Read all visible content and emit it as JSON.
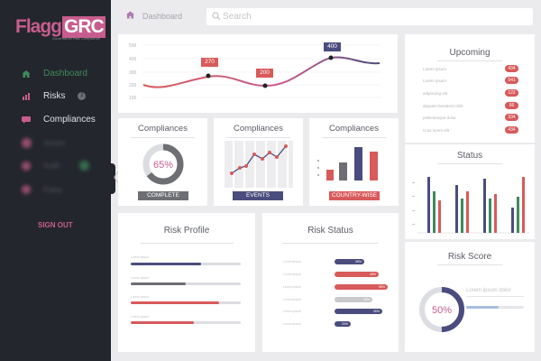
{
  "sidebar": {
    "logo_main": "Flagg",
    "logo_accent": "GRC",
    "logo_sub": "Governance Risk Compliance",
    "items": [
      {
        "label": "Dashboard",
        "icon": "home-icon"
      },
      {
        "label": "Risks",
        "icon": "bar-chart-icon",
        "badge": "2"
      },
      {
        "label": "Compliances",
        "icon": "chat-icon"
      },
      {
        "label": "Issues",
        "icon": "bug-icon"
      },
      {
        "label": "Audit",
        "icon": "audit-icon"
      },
      {
        "label": "Policy",
        "icon": "policy-icon"
      }
    ],
    "sign_out": "SIGN OUT",
    "collapse_glyph": "〈"
  },
  "topbar": {
    "breadcrumb": "Dashboard",
    "search_placeholder": "Search"
  },
  "colors": {
    "accent": "#c75d8e",
    "navy": "#4b4c7e",
    "red": "#d85a5a",
    "gray": "#6e6f74",
    "green": "#3e8a5a",
    "sidebar_bg": "#23262d"
  },
  "line_chart": {
    "y_ticks": [
      "500",
      "400",
      "300",
      "200",
      "100"
    ],
    "labels": [
      "270",
      "200",
      "400"
    ]
  },
  "compliances": [
    {
      "title": "Compliances",
      "center": "65%",
      "tag": "COMPLETE"
    },
    {
      "title": "Compliances",
      "tag": "EVENTS"
    },
    {
      "title": "Compliances",
      "tag": "COUNTRY-WISE"
    }
  ],
  "upcoming": {
    "title": "Upcoming",
    "rows": [
      {
        "text": "Lorem ipsum",
        "value": "434"
      },
      {
        "text": "Lorem ipsum",
        "value": "541"
      },
      {
        "text": "adipiscing elit",
        "value": "122"
      },
      {
        "text": "aliquam hendrerit nibh",
        "value": "66"
      },
      {
        "text": "pellentesque dolor",
        "value": "334"
      },
      {
        "text": "Cras lorem elit",
        "value": "434"
      }
    ]
  },
  "status": {
    "title": "Status"
  },
  "risk_profile": {
    "title": "Risk Profile",
    "rows": [
      {
        "label": "Lorem ipsum",
        "level": 0.64,
        "color": "#4b4c7e"
      },
      {
        "label": "Lorem ipsum",
        "level": 0.5,
        "color": "#6e6f74"
      },
      {
        "label": "Lorem ipsum",
        "level": 0.8,
        "color": "#d85a5a"
      },
      {
        "label": "Lorem ipsum",
        "level": 0.57,
        "color": "#d85a5a"
      }
    ]
  },
  "risk_status": {
    "title": "Risk Status",
    "rows": [
      {
        "label": "Lorem ipsum",
        "value": "35%",
        "level": 0.55,
        "color": "#4b4c7e"
      },
      {
        "label": "Lorem ipsum",
        "value": "45%",
        "level": 0.82,
        "color": "#d85a5a"
      },
      {
        "label": "Lorem ipsum",
        "value": "55%",
        "level": 0.98,
        "color": "#d85a5a"
      },
      {
        "label": "Lorem ipsum",
        "value": "40%",
        "level": 0.7,
        "color": "#c9c9cc"
      },
      {
        "label": "Lorem ipsum",
        "value": "35%",
        "level": 0.88,
        "color": "#4b4c7e"
      },
      {
        "label": "Lorem ipsum",
        "value": "20%",
        "level": 0.3,
        "color": "#4b4c7e"
      }
    ]
  },
  "risk_score": {
    "title": "Risk Score",
    "center": "50%",
    "level": 0.5,
    "text": "Lorem ipsum dolor"
  }
}
